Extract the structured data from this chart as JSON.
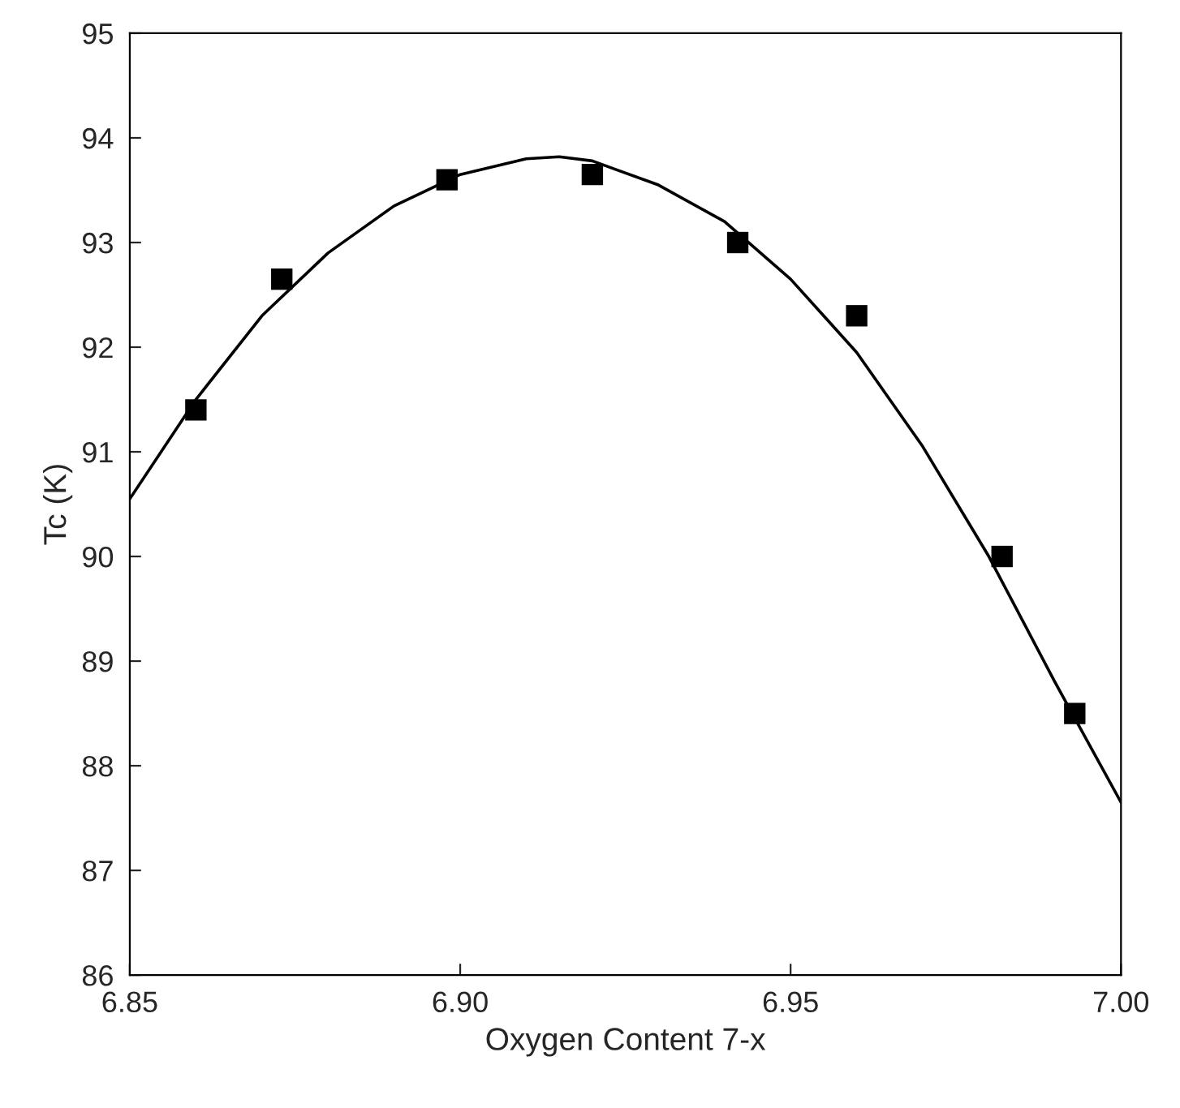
{
  "chart_data": {
    "type": "scatter",
    "xlabel": "Oxygen Content 7-x",
    "ylabel": "Tc (K)",
    "xlim": [
      6.85,
      7.0
    ],
    "ylim": [
      86,
      95
    ],
    "xticks": [
      {
        "value": 6.85,
        "label": "6.85"
      },
      {
        "value": 6.9,
        "label": "6.90"
      },
      {
        "value": 6.95,
        "label": "6.95"
      },
      {
        "value": 7.0,
        "label": "7.00"
      }
    ],
    "yticks": [
      86,
      87,
      88,
      89,
      90,
      91,
      92,
      93,
      94,
      95
    ],
    "grid": false,
    "legend": false,
    "series": [
      {
        "marker": "square",
        "color": "#000000",
        "x": [
          6.86,
          6.873,
          6.898,
          6.92,
          6.942,
          6.96,
          6.982,
          6.993
        ],
        "values": [
          91.4,
          92.65,
          93.6,
          93.65,
          93.0,
          92.3,
          90.0,
          88.5
        ]
      },
      {
        "type": "line",
        "marker": "none",
        "line_style": "solid",
        "color": "#000000",
        "x": [
          6.85,
          6.86,
          6.87,
          6.88,
          6.89,
          6.9,
          6.91,
          6.915,
          6.92,
          6.93,
          6.94,
          6.95,
          6.96,
          6.97,
          6.98,
          6.99,
          7.0
        ],
        "values": [
          90.55,
          91.5,
          92.3,
          92.9,
          93.35,
          93.65,
          93.8,
          93.82,
          93.78,
          93.55,
          93.2,
          92.65,
          91.95,
          91.05,
          90.0,
          88.8,
          87.65
        ]
      }
    ]
  }
}
